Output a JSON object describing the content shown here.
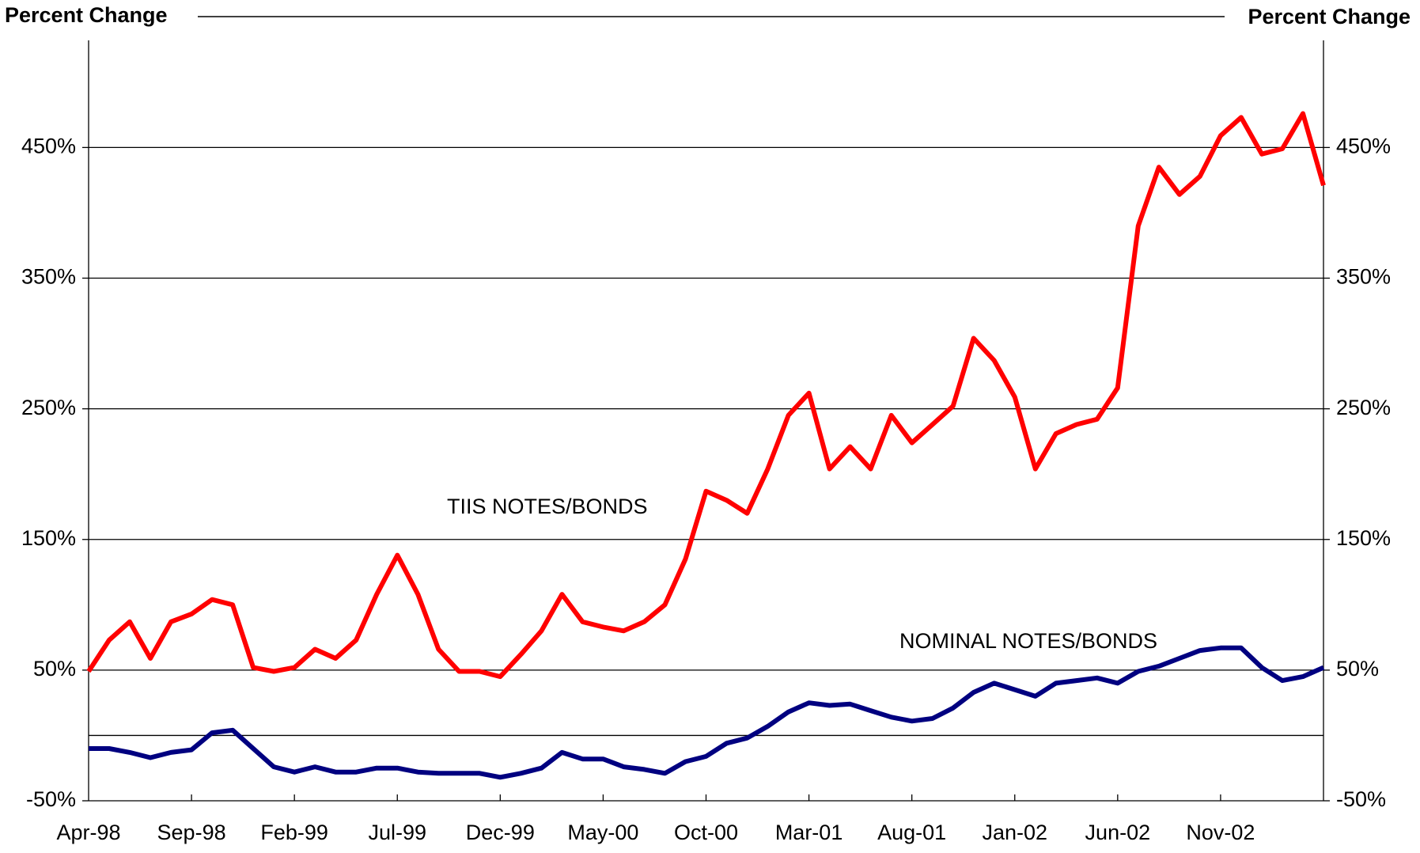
{
  "chart_data": {
    "type": "line",
    "y_axis_label": "Percent Change",
    "y2_axis_label": "Percent Change",
    "annotations": [
      "TIIS NOTES/BONDS",
      "NOMINAL NOTES/BONDS"
    ],
    "categories": [
      "Apr-98",
      null,
      null,
      null,
      null,
      "Sep-98",
      null,
      null,
      null,
      null,
      "Feb-99",
      null,
      null,
      null,
      null,
      "Jul-99",
      null,
      null,
      null,
      null,
      "Dec-99",
      null,
      null,
      null,
      null,
      "May-00",
      null,
      null,
      null,
      null,
      "Oct-00",
      null,
      null,
      null,
      null,
      "Mar-01",
      null,
      null,
      null,
      null,
      "Aug-01",
      null,
      null,
      null,
      null,
      "Jan-02",
      null,
      null,
      null,
      null,
      "Jun-02",
      null,
      null,
      null,
      null,
      "Nov-02",
      null,
      null,
      null,
      null,
      null
    ],
    "series": [
      {
        "name": "TIIS NOTES/BONDS",
        "color": "#ff0000",
        "values": [
          49,
          73,
          87,
          59,
          87,
          93,
          104,
          100,
          52,
          49,
          52,
          66,
          59,
          73,
          108,
          138,
          108,
          66,
          49,
          49,
          45,
          62,
          80,
          108,
          87,
          83,
          80,
          87,
          100,
          135,
          187,
          180,
          170,
          204,
          245,
          262,
          204,
          221,
          204,
          245,
          224,
          238,
          252,
          304,
          287,
          259,
          204,
          231,
          238,
          242,
          266,
          390,
          435,
          414,
          428,
          459,
          473,
          445,
          449,
          476,
          421
        ]
      },
      {
        "name": "NOMINAL NOTES/BONDS",
        "color": "#000080",
        "values": [
          -10,
          -10,
          -13,
          -17,
          -13,
          -11,
          2,
          4,
          -10,
          -24,
          -28,
          -24,
          -28,
          -28,
          -25,
          -25,
          -28,
          -29,
          -29,
          -29,
          -32,
          -29,
          -25,
          -13,
          -18,
          -18,
          -24,
          -26,
          -29,
          -20,
          -16,
          -6,
          -2,
          7,
          18,
          25,
          23,
          24,
          19,
          14,
          11,
          13,
          21,
          33,
          40,
          35,
          30,
          40,
          42,
          44,
          40,
          49,
          53,
          59,
          65,
          67,
          67,
          52,
          42,
          45,
          52
        ]
      }
    ],
    "ylim": [
      -50,
      532
    ],
    "yticks": [
      {
        "value": -50,
        "label": "-50%"
      },
      {
        "value": 50,
        "label": "50%"
      },
      {
        "value": 150,
        "label": "150%"
      },
      {
        "value": 250,
        "label": "250%"
      },
      {
        "value": 350,
        "label": "350%"
      },
      {
        "value": 450,
        "label": "450%"
      }
    ],
    "y2lim": [
      -50,
      532
    ],
    "y2ticks": [
      {
        "value": -50,
        "label": "-50%"
      },
      {
        "value": 50,
        "label": "50%"
      },
      {
        "value": 150,
        "label": "150%"
      },
      {
        "value": 250,
        "label": "250%"
      },
      {
        "value": 350,
        "label": "350%"
      },
      {
        "value": 450,
        "label": "450%"
      }
    ],
    "grid": true
  }
}
